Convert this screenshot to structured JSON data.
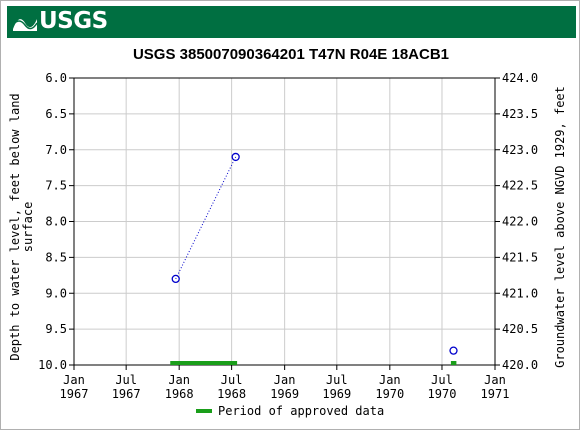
{
  "header": {
    "logo_text": "USGS",
    "bg_color": "#006f41",
    "logo_icon": "usgs-wave-logo-icon"
  },
  "chart_data": {
    "type": "scatter",
    "title": "USGS 385007090364201 T47N R04E 18ACB1",
    "ylabel_left": "Depth to water level, feet below land surface",
    "ylabel_left_lines": [
      "Depth to water level, feet below land",
      "surface"
    ],
    "ylabel_right": "Groundwater level above NGVD 1929, feet",
    "y_left_range": [
      6.0,
      10.0
    ],
    "y_left_inverted": true,
    "y_right_range": [
      420.0,
      424.0
    ],
    "y_left_ticks": [
      "6.0",
      "6.5",
      "7.0",
      "7.5",
      "8.0",
      "8.5",
      "9.0",
      "9.5",
      "10.0"
    ],
    "y_right_ticks": [
      "424.0",
      "423.5",
      "423.0",
      "422.5",
      "422.0",
      "421.5",
      "421.0",
      "420.5",
      "420.0"
    ],
    "x_range": [
      "1967-01-01",
      "1971-01-01"
    ],
    "x_ticks": [
      {
        "date": "1967-01-01",
        "line1": "Jan",
        "line2": "1967"
      },
      {
        "date": "1967-07-01",
        "line1": "Jul",
        "line2": "1967"
      },
      {
        "date": "1968-01-01",
        "line1": "Jan",
        "line2": "1968"
      },
      {
        "date": "1968-07-01",
        "line1": "Jul",
        "line2": "1968"
      },
      {
        "date": "1969-01-01",
        "line1": "Jan",
        "line2": "1969"
      },
      {
        "date": "1969-07-01",
        "line1": "Jul",
        "line2": "1969"
      },
      {
        "date": "1970-01-01",
        "line1": "Jan",
        "line2": "1970"
      },
      {
        "date": "1970-07-01",
        "line1": "Jul",
        "line2": "1970"
      },
      {
        "date": "1971-01-01",
        "line1": "Jan",
        "line2": "1971"
      }
    ],
    "grid": true,
    "series": [
      {
        "color": "#0000cc",
        "marker": "circle-open",
        "line": "dotted",
        "points": [
          {
            "date": "1967-12-20",
            "depth": 8.8
          },
          {
            "date": "1968-07-15",
            "depth": 7.1
          }
        ]
      },
      {
        "color": "#0000cc",
        "marker": "circle-open",
        "line": "none",
        "points": [
          {
            "date": "1970-08-10",
            "depth": 9.8
          }
        ]
      }
    ],
    "approved_periods": [
      {
        "start": "1967-12-01",
        "end": "1968-07-20"
      },
      {
        "start": "1970-08-01",
        "end": "1970-08-20"
      }
    ],
    "approved_color": "#1a9e1a",
    "legend": {
      "label": "Period of approved data",
      "placement": "bottom-center"
    }
  }
}
